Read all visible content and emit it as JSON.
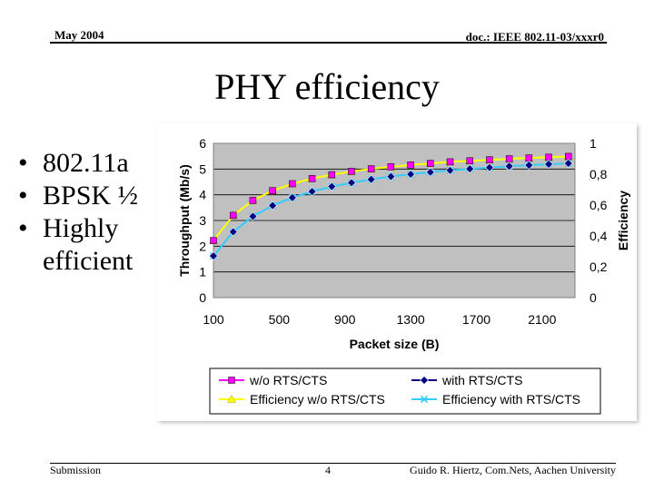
{
  "header": {
    "date": "May 2004",
    "doc": "doc.: IEEE 802.11-03/xxxr0"
  },
  "slide": {
    "title": "PHY efficiency",
    "bullets": [
      "802.11a",
      "BPSK ½",
      "Highly efficient"
    ]
  },
  "footer": {
    "left": "Submission",
    "page": "4",
    "author": "Guido R. Hiertz, Com.Nets, Aachen University"
  },
  "colors": {
    "plot_bg": "#c0c0c0",
    "magenta": "#ff00ff",
    "navy": "#000080",
    "yellow": "#ffff00",
    "cyan": "#33ccff"
  },
  "chart_data": {
    "type": "line",
    "title": "",
    "xlabel": "Packet size (B)",
    "ylabel": "Throughput (Mb/s)",
    "y2label": "Efficiency",
    "x_ticks": [
      "100",
      "500",
      "900",
      "1300",
      "1700",
      "2100"
    ],
    "y_ticks": [
      "0",
      "1",
      "2",
      "3",
      "4",
      "5",
      "6"
    ],
    "y2_ticks": [
      "0",
      "0,2",
      "0,4",
      "0,6",
      "0,8",
      "1"
    ],
    "xlim": [
      100,
      2300
    ],
    "ylim": [
      0,
      6
    ],
    "y2lim": [
      0,
      1
    ],
    "x": [
      100,
      220,
      340,
      460,
      580,
      700,
      820,
      940,
      1060,
      1180,
      1300,
      1420,
      1540,
      1660,
      1780,
      1900,
      2020,
      2140,
      2260
    ],
    "series": [
      {
        "name": "w/o RTS/CTS",
        "axis": "left",
        "values": [
          2.22,
          3.2,
          3.78,
          4.16,
          4.43,
          4.63,
          4.78,
          4.91,
          5.01,
          5.09,
          5.16,
          5.22,
          5.28,
          5.32,
          5.36,
          5.4,
          5.43,
          5.46,
          5.49
        ]
      },
      {
        "name": "with RTS/CTS",
        "axis": "left",
        "values": [
          1.62,
          2.56,
          3.16,
          3.58,
          3.89,
          4.13,
          4.32,
          4.47,
          4.6,
          4.71,
          4.8,
          4.88,
          4.95,
          5.01,
          5.06,
          5.11,
          5.15,
          5.19,
          5.22
        ]
      },
      {
        "name": "Efficiency w/o RTS/CTS",
        "axis": "right",
        "values": [
          0.37,
          0.533,
          0.63,
          0.693,
          0.738,
          0.772,
          0.797,
          0.818,
          0.835,
          0.848,
          0.86,
          0.87,
          0.88,
          0.887,
          0.893,
          0.9,
          0.905,
          0.91,
          0.915
        ]
      },
      {
        "name": "Efficiency with RTS/CTS",
        "axis": "right",
        "values": [
          0.27,
          0.427,
          0.527,
          0.597,
          0.648,
          0.688,
          0.72,
          0.745,
          0.767,
          0.785,
          0.8,
          0.813,
          0.825,
          0.835,
          0.843,
          0.852,
          0.858,
          0.865,
          0.87
        ]
      }
    ],
    "legend": {
      "position": "bottom",
      "entries": [
        "w/o RTS/CTS",
        "with RTS/CTS",
        "Efficiency w/o RTS/CTS",
        "Efficiency with RTS/CTS"
      ]
    },
    "grid": true
  }
}
